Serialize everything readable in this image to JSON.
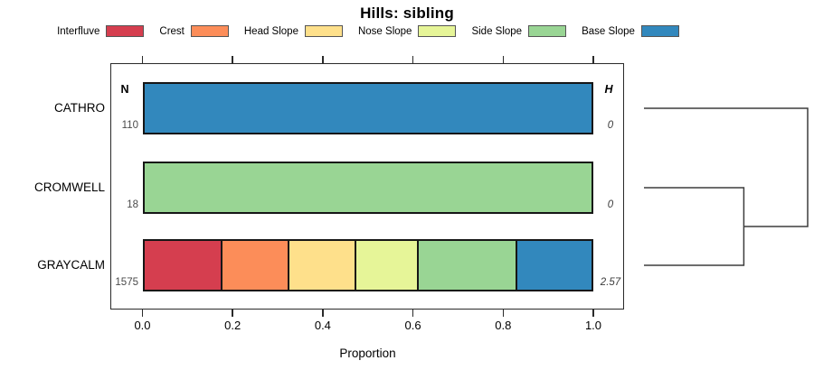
{
  "title": "Hills: sibling",
  "legend": {
    "items": [
      {
        "label": "Interfluve",
        "color": "#D53E4F"
      },
      {
        "label": "Crest",
        "color": "#FC8D59"
      },
      {
        "label": "Head Slope",
        "color": "#FEE08B"
      },
      {
        "label": "Nose Slope",
        "color": "#E6F598"
      },
      {
        "label": "Side Slope",
        "color": "#99D594"
      },
      {
        "label": "Base Slope",
        "color": "#3288BD"
      }
    ]
  },
  "chart_data": {
    "type": "bar",
    "variant": "horizontal-stacked-proportion",
    "title": "Hills: sibling",
    "xlabel": "Proportion",
    "xlim": [
      0,
      1
    ],
    "xticks": [
      "0.0",
      "0.2",
      "0.4",
      "0.6",
      "0.8",
      "1.0"
    ],
    "grid": false,
    "legend_position": "top",
    "categories": [
      "Interfluve",
      "Crest",
      "Head Slope",
      "Nose Slope",
      "Side Slope",
      "Base Slope"
    ],
    "colors": [
      "#D53E4F",
      "#FC8D59",
      "#FEE08B",
      "#E6F598",
      "#99D594",
      "#3288BD"
    ],
    "column_headers": {
      "n": "N",
      "h": "H"
    },
    "rows": [
      {
        "label": "CATHRO",
        "n": "110",
        "h": "0",
        "proportions": [
          0,
          0,
          0,
          0,
          0,
          1.0
        ]
      },
      {
        "label": "CROMWELL",
        "n": "18",
        "h": "0",
        "proportions": [
          0,
          0,
          0,
          0,
          1.0,
          0
        ]
      },
      {
        "label": "GRAYCALM",
        "n": "1575",
        "h": "2.57",
        "proportions": [
          0.17,
          0.15,
          0.15,
          0.14,
          0.22,
          0.17
        ]
      }
    ],
    "dendrogram": {
      "orientation": "right",
      "leaf_order": [
        "CATHRO",
        "CROMWELL",
        "GRAYCALM"
      ],
      "merges": [
        {
          "members": [
            "CROMWELL",
            "GRAYCALM"
          ],
          "relative_height": 0.61
        },
        {
          "members": [
            "CATHRO",
            "(CROMWELL,GRAYCALM)"
          ],
          "relative_height": 1.0
        }
      ]
    }
  }
}
